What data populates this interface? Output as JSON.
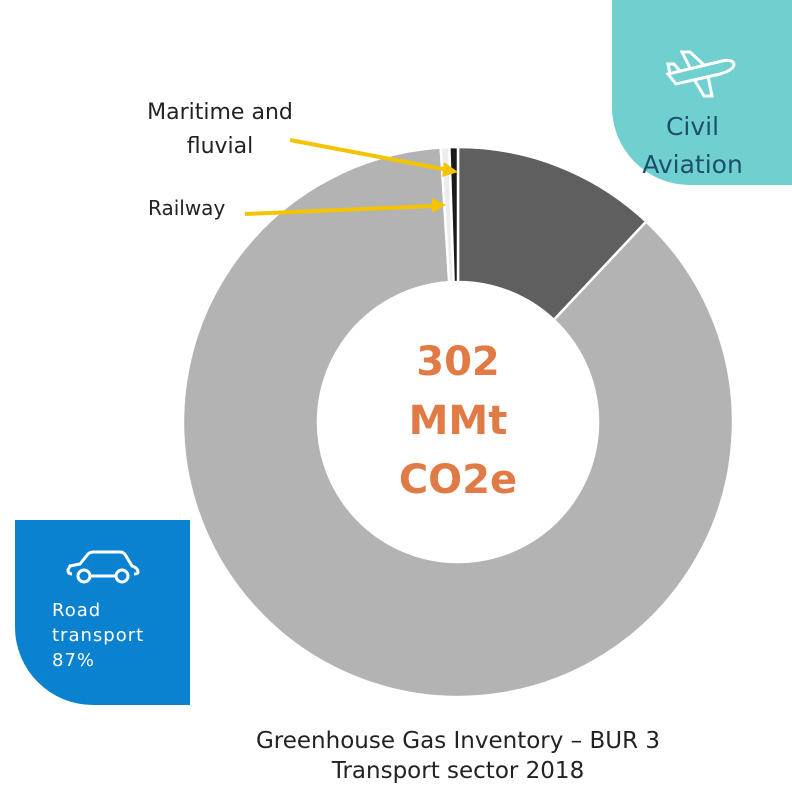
{
  "chart_data": {
    "type": "donut",
    "title": "Greenhouse Gas Inventory – BUR 3",
    "subtitle": "Transport sector 2018",
    "center_text": "302 MMt CO2e",
    "categories": [
      "Civil Aviation",
      "Road transport",
      "Railway",
      "Maritime and fluvial"
    ],
    "values": [
      12,
      87,
      0.5,
      0.5
    ],
    "value_labels": [
      null,
      "87%",
      null,
      null
    ],
    "colors": [
      "#5f5f5f",
      "#b3b3b3",
      "#ececec",
      "#1a1a1a"
    ]
  }
}
